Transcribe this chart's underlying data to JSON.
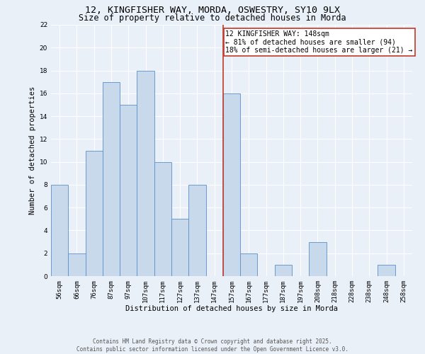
{
  "title_line1": "12, KINGFISHER WAY, MORDA, OSWESTRY, SY10 9LX",
  "title_line2": "Size of property relative to detached houses in Morda",
  "xlabel": "Distribution of detached houses by size in Morda",
  "ylabel": "Number of detached properties",
  "bin_labels": [
    "56sqm",
    "66sqm",
    "76sqm",
    "87sqm",
    "97sqm",
    "107sqm",
    "117sqm",
    "127sqm",
    "137sqm",
    "147sqm",
    "157sqm",
    "167sqm",
    "177sqm",
    "187sqm",
    "197sqm",
    "208sqm",
    "218sqm",
    "228sqm",
    "238sqm",
    "248sqm",
    "258sqm"
  ],
  "bar_heights": [
    8,
    2,
    11,
    17,
    15,
    18,
    10,
    5,
    8,
    0,
    16,
    2,
    0,
    1,
    0,
    3,
    0,
    0,
    0,
    1,
    0
  ],
  "bar_color": "#c9d9ec",
  "bar_edge_color": "#5b8fc9",
  "vline_x_idx": 9.5,
  "vline_color": "#c0392b",
  "annotation_text": "12 KINGFISHER WAY: 148sqm\n← 81% of detached houses are smaller (94)\n18% of semi-detached houses are larger (21) →",
  "annotation_box_color": "#c0392b",
  "ylim": [
    0,
    22
  ],
  "yticks": [
    0,
    2,
    4,
    6,
    8,
    10,
    12,
    14,
    16,
    18,
    20,
    22
  ],
  "background_color": "#eaf0f8",
  "footer_text": "Contains HM Land Registry data © Crown copyright and database right 2025.\nContains public sector information licensed under the Open Government Licence v3.0.",
  "grid_color": "#ffffff",
  "title_fontsize": 9.5,
  "subtitle_fontsize": 8.5,
  "axis_label_fontsize": 7.5,
  "tick_fontsize": 6.5,
  "annotation_fontsize": 7,
  "footer_fontsize": 5.5
}
